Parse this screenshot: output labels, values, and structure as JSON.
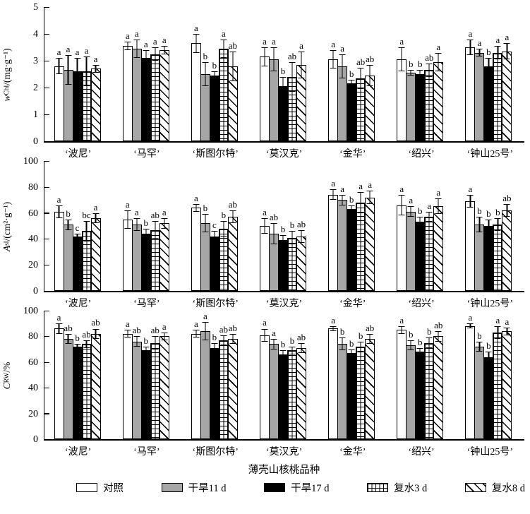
{
  "figure": {
    "x_axis_title": "薄壳山核桃品种",
    "categories": [
      "‘波尼’",
      "‘马罕’",
      "‘斯图尔特’",
      "‘莫汉克’",
      "‘金华’",
      "‘绍兴’",
      "‘钟山25号’"
    ],
    "legend": [
      {
        "label": "对照",
        "pattern": "plain"
      },
      {
        "label": "干旱11 d",
        "pattern": "gray"
      },
      {
        "label": "干旱17 d",
        "pattern": "solid"
      },
      {
        "label": "复水3 d",
        "pattern": "grid"
      },
      {
        "label": "复水8 d",
        "pattern": "hatch"
      }
    ],
    "colors": {
      "ink": "#000000",
      "bar_gray": "#a6a6a6",
      "bar_black": "#000000",
      "bar_white": "#ffffff"
    }
  },
  "chart_data": [
    {
      "type": "bar",
      "ylabel": {
        "var": "w",
        "sub": "Chl",
        "unit": "/(mg·g⁻¹)"
      },
      "ylim": [
        0,
        5
      ],
      "yticks": [
        0,
        1,
        2,
        3,
        4,
        5
      ],
      "grid": false,
      "legend_position": "figure-bottom",
      "series": [
        {
          "name": "对照",
          "pattern": "plain",
          "values": [
            2.8,
            3.55,
            3.65,
            3.15,
            3.05,
            3.05,
            3.5
          ],
          "errors": [
            0.3,
            0.15,
            0.35,
            0.35,
            0.35,
            0.45,
            0.3
          ],
          "letters": [
            "a",
            "a",
            "a",
            "a",
            "a",
            "a",
            "a"
          ]
        },
        {
          "name": "干旱11 d",
          "pattern": "gray",
          "values": [
            2.65,
            3.45,
            2.5,
            3.05,
            2.8,
            2.55,
            3.3
          ],
          "errors": [
            0.55,
            0.35,
            0.45,
            0.45,
            0.45,
            0.1,
            0.15
          ],
          "letters": [
            "a",
            "a",
            "b",
            "a",
            "a",
            "b",
            "a"
          ]
        },
        {
          "name": "干旱17 d",
          "pattern": "solid",
          "values": [
            2.6,
            3.1,
            2.45,
            2.05,
            2.15,
            2.5,
            2.8
          ],
          "errors": [
            0.5,
            0.3,
            0.15,
            0.35,
            0.15,
            0.15,
            0.3
          ],
          "letters": [
            "a",
            "a",
            "b",
            "b",
            "b",
            "b",
            "b"
          ]
        },
        {
          "name": "复水3 d",
          "pattern": "grid",
          "values": [
            2.6,
            3.25,
            3.45,
            2.4,
            2.35,
            2.65,
            3.3
          ],
          "errors": [
            0.55,
            0.25,
            0.35,
            0.55,
            0.4,
            0.25,
            0.25
          ],
          "letters": [
            "a",
            "a",
            "a",
            "ab",
            "ab",
            "ab",
            "a"
          ]
        },
        {
          "name": "复水8 d",
          "pattern": "hatch",
          "values": [
            2.7,
            3.4,
            2.8,
            2.85,
            2.45,
            2.95,
            3.35
          ],
          "errors": [
            0.15,
            0.15,
            0.55,
            0.5,
            0.4,
            0.35,
            0.3
          ],
          "letters": [
            "a",
            "a",
            "ab",
            "a",
            "ab",
            "a",
            "a"
          ]
        }
      ]
    },
    {
      "type": "bar",
      "ylabel": {
        "var": "A",
        "sub": "sl",
        "unit": "/(cm²·g⁻¹)"
      },
      "ylim": [
        0,
        100
      ],
      "yticks": [
        0,
        20,
        40,
        60,
        80,
        100
      ],
      "grid": false,
      "legend_position": "figure-bottom",
      "series": [
        {
          "name": "对照",
          "pattern": "plain",
          "values": [
            61,
            55,
            64,
            50,
            74,
            66,
            69
          ],
          "errors": [
            5,
            7,
            3,
            6,
            4,
            8,
            5
          ],
          "letters": [
            "a",
            "a",
            "a",
            "a",
            "a",
            "a",
            "a"
          ]
        },
        {
          "name": "干旱11 d",
          "pattern": "gray",
          "values": [
            51,
            51,
            52,
            44,
            70,
            61,
            51
          ],
          "errors": [
            4,
            5,
            7,
            8,
            4,
            4,
            6
          ],
          "letters": [
            "b",
            "a",
            "b",
            "ab",
            "a",
            "a",
            "b"
          ]
        },
        {
          "name": "干旱17 d",
          "pattern": "solid",
          "values": [
            42,
            44,
            42,
            39,
            63,
            53,
            50
          ],
          "errors": [
            2,
            4,
            4,
            4,
            3,
            4,
            5
          ],
          "letters": [
            "c",
            "b",
            "c",
            "b",
            "b",
            "b",
            "b"
          ]
        },
        {
          "name": "复水3 d",
          "pattern": "grid",
          "values": [
            46,
            47,
            48,
            41,
            68,
            57,
            51
          ],
          "errors": [
            8,
            7,
            6,
            5,
            8,
            4,
            5
          ],
          "letters": [
            "bc",
            "ab",
            "b",
            "b",
            "a",
            "a",
            "b"
          ]
        },
        {
          "name": "复水8 d",
          "pattern": "hatch",
          "values": [
            56,
            52,
            57,
            42,
            72,
            65,
            62
          ],
          "errors": [
            4,
            4,
            5,
            5,
            5,
            6,
            5
          ],
          "letters": [
            "a",
            "a",
            "ab",
            "ab",
            "a",
            "a",
            "ab"
          ]
        }
      ]
    },
    {
      "type": "bar",
      "ylabel": {
        "var": "C",
        "sub": "RW",
        "unit": "/%"
      },
      "ylim": [
        0,
        100
      ],
      "yticks": [
        0,
        20,
        40,
        60,
        80,
        100
      ],
      "grid": false,
      "legend_position": "figure-bottom",
      "series": [
        {
          "name": "对照",
          "pattern": "plain",
          "values": [
            86,
            82,
            82,
            81,
            86,
            85,
            88
          ],
          "errors": [
            4,
            3,
            3,
            5,
            2,
            3,
            2
          ],
          "letters": [
            "a",
            "a",
            "a",
            "a",
            "a",
            "a",
            "a"
          ]
        },
        {
          "name": "干旱11 d",
          "pattern": "gray",
          "values": [
            78,
            76,
            84,
            74,
            74,
            73,
            72
          ],
          "errors": [
            4,
            4,
            7,
            4,
            5,
            4,
            4
          ],
          "letters": [
            "ab",
            "ab",
            "a",
            "a",
            "b",
            "b",
            "b"
          ]
        },
        {
          "name": "干旱17 d",
          "pattern": "solid",
          "values": [
            72,
            69,
            71,
            66,
            67,
            68,
            64
          ],
          "errors": [
            2,
            3,
            4,
            3,
            3,
            3,
            4
          ],
          "letters": [
            "b",
            "b",
            "b",
            "b",
            "b",
            "b",
            "b"
          ]
        },
        {
          "name": "复水3 d",
          "pattern": "grid",
          "values": [
            74,
            75,
            77,
            69,
            72,
            75,
            83
          ],
          "errors": [
            3,
            5,
            4,
            3,
            4,
            4,
            5
          ],
          "letters": [
            "ab",
            "ab",
            "ab",
            "b",
            "b",
            "b",
            "a"
          ]
        },
        {
          "name": "复水8 d",
          "pattern": "hatch",
          "values": [
            82,
            80,
            78,
            71,
            78,
            80,
            84
          ],
          "errors": [
            4,
            3,
            4,
            4,
            4,
            4,
            3
          ],
          "letters": [
            "ab",
            "a",
            "ab",
            "ab",
            "ab",
            "ab",
            "a"
          ]
        }
      ]
    }
  ]
}
